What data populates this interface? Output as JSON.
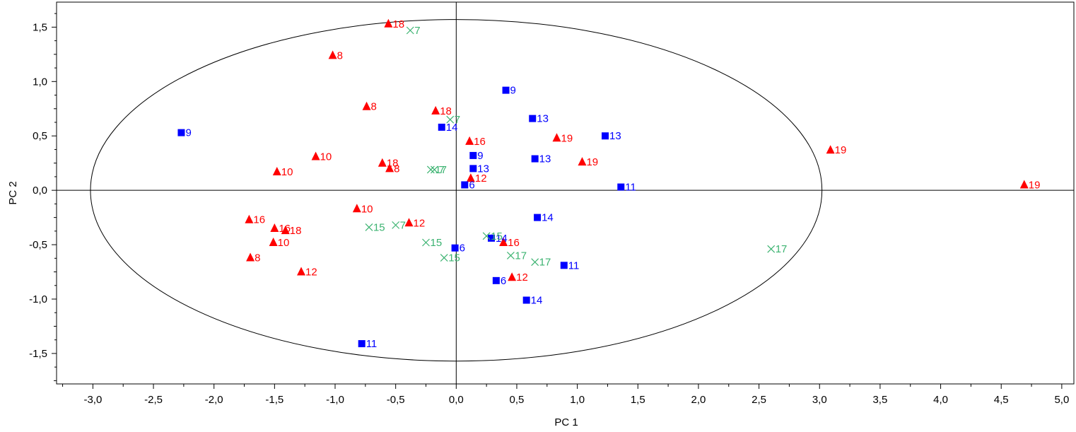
{
  "chart_data": {
    "type": "scatter",
    "xlabel": "PC 1",
    "ylabel": "PC 2",
    "xlim": [
      -3.3,
      5.1
    ],
    "ylim": [
      -1.78,
      1.73
    ],
    "xticks": [
      -3.0,
      -2.5,
      -2.0,
      -1.5,
      -1.0,
      -0.5,
      0.0,
      0.5,
      1.0,
      1.5,
      2.0,
      2.5,
      3.0,
      3.5,
      4.0,
      4.5,
      5.0
    ],
    "xtick_labels": [
      "-3,0",
      "-2,5",
      "-2,0",
      "-1,5",
      "-1,0",
      "-0,5",
      "0,0",
      "0,5",
      "1,0",
      "1,5",
      "2,0",
      "2,5",
      "3,0",
      "3,5",
      "4,0",
      "4,5",
      "5,0"
    ],
    "yticks": [
      -1.5,
      -1.0,
      -0.5,
      0.0,
      0.5,
      1.0,
      1.5
    ],
    "ytick_labels": [
      "-1,5",
      "-1,0",
      "-0,5",
      "0,0",
      "0,5",
      "1,0",
      "1,5"
    ],
    "grid": false,
    "ellipse": {
      "rx": 3.02,
      "ry": 1.57
    },
    "colors": {
      "triangle": "#ff0000",
      "square": "#0000ff",
      "cross": "#3cb371"
    },
    "series": [
      {
        "marker": "triangle",
        "color": "#ff0000",
        "points": [
          {
            "x": -0.56,
            "y": 1.53,
            "label": "18"
          },
          {
            "x": -1.02,
            "y": 1.24,
            "label": "8"
          },
          {
            "x": -0.74,
            "y": 0.77,
            "label": "8"
          },
          {
            "x": -0.17,
            "y": 0.73,
            "label": "18"
          },
          {
            "x": 0.11,
            "y": 0.45,
            "label": "16"
          },
          {
            "x": 0.83,
            "y": 0.48,
            "label": "19"
          },
          {
            "x": 3.09,
            "y": 0.37,
            "label": "19"
          },
          {
            "x": 1.04,
            "y": 0.26,
            "label": "19"
          },
          {
            "x": -1.16,
            "y": 0.31,
            "label": "10"
          },
          {
            "x": -1.48,
            "y": 0.17,
            "label": "10"
          },
          {
            "x": -0.61,
            "y": 0.25,
            "label": "18"
          },
          {
            "x": -0.55,
            "y": 0.2,
            "label": "8"
          },
          {
            "x": 0.12,
            "y": 0.11,
            "label": "12"
          },
          {
            "x": 4.69,
            "y": 0.05,
            "label": "19"
          },
          {
            "x": -0.82,
            "y": -0.17,
            "label": "10"
          },
          {
            "x": -1.71,
            "y": -0.27,
            "label": "16"
          },
          {
            "x": -0.39,
            "y": -0.3,
            "label": "12"
          },
          {
            "x": -1.5,
            "y": -0.35,
            "label": "16"
          },
          {
            "x": -1.41,
            "y": -0.37,
            "label": "18"
          },
          {
            "x": -1.51,
            "y": -0.48,
            "label": "10"
          },
          {
            "x": 0.39,
            "y": -0.48,
            "label": "16"
          },
          {
            "x": -1.7,
            "y": -0.62,
            "label": "8"
          },
          {
            "x": -1.28,
            "y": -0.75,
            "label": "12"
          },
          {
            "x": 0.46,
            "y": -0.8,
            "label": "12"
          }
        ]
      },
      {
        "marker": "square",
        "color": "#0000ff",
        "points": [
          {
            "x": 0.41,
            "y": 0.92,
            "label": "9"
          },
          {
            "x": -2.27,
            "y": 0.53,
            "label": "9"
          },
          {
            "x": -0.12,
            "y": 0.58,
            "label": "14"
          },
          {
            "x": 0.63,
            "y": 0.66,
            "label": "13"
          },
          {
            "x": 1.23,
            "y": 0.5,
            "label": "13"
          },
          {
            "x": 0.14,
            "y": 0.32,
            "label": "9"
          },
          {
            "x": 0.65,
            "y": 0.29,
            "label": "13"
          },
          {
            "x": 0.14,
            "y": 0.2,
            "label": "13"
          },
          {
            "x": 0.07,
            "y": 0.05,
            "label": "6"
          },
          {
            "x": 1.36,
            "y": 0.03,
            "label": "11"
          },
          {
            "x": 0.67,
            "y": -0.25,
            "label": "14"
          },
          {
            "x": 0.29,
            "y": -0.44,
            "label": "14"
          },
          {
            "x": -0.01,
            "y": -0.53,
            "label": "6"
          },
          {
            "x": 0.89,
            "y": -0.69,
            "label": "11"
          },
          {
            "x": 0.33,
            "y": -0.83,
            "label": "6"
          },
          {
            "x": 0.58,
            "y": -1.01,
            "label": "14"
          },
          {
            "x": -0.78,
            "y": -1.41,
            "label": "11"
          }
        ]
      },
      {
        "marker": "cross",
        "color": "#3cb371",
        "points": [
          {
            "x": -0.38,
            "y": 1.47,
            "label": "7"
          },
          {
            "x": -0.05,
            "y": 0.65,
            "label": "7"
          },
          {
            "x": -0.21,
            "y": 0.19,
            "label": "17"
          },
          {
            "x": -0.18,
            "y": 0.19,
            "label": "7"
          },
          {
            "x": -0.72,
            "y": -0.34,
            "label": "15"
          },
          {
            "x": -0.5,
            "y": -0.32,
            "label": "7"
          },
          {
            "x": 0.25,
            "y": -0.42,
            "label": "15"
          },
          {
            "x": -0.25,
            "y": -0.48,
            "label": "15"
          },
          {
            "x": -0.1,
            "y": -0.62,
            "label": "15"
          },
          {
            "x": 0.45,
            "y": -0.6,
            "label": "17"
          },
          {
            "x": 0.65,
            "y": -0.66,
            "label": "17"
          },
          {
            "x": 2.6,
            "y": -0.54,
            "label": "17"
          }
        ]
      }
    ]
  }
}
